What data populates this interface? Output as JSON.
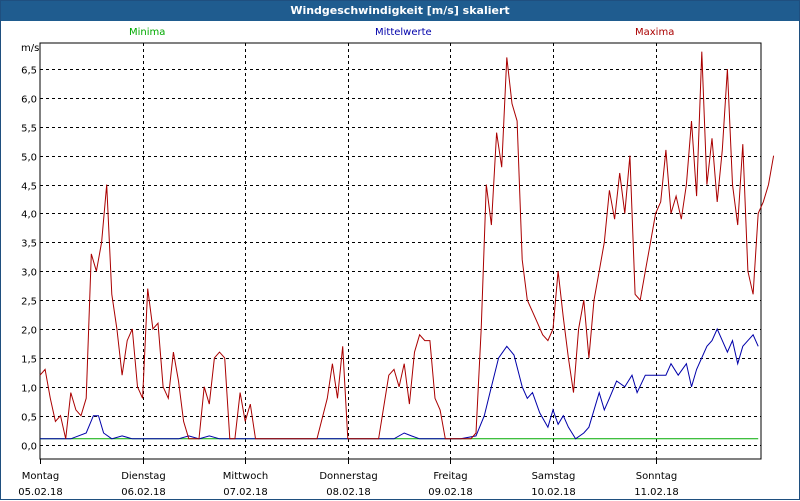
{
  "window": {
    "title": "Windgeschwindigkeit [m/s] skaliert"
  },
  "colors": {
    "min": "#00aa00",
    "mean": "#0000aa",
    "max": "#aa0000",
    "grid": "#000000",
    "titlebar": "#1f5c8f"
  },
  "chart_data": {
    "type": "line",
    "title": "Windgeschwindigkeit [m/s] skaliert",
    "ylabel": "m/s",
    "xlabel": "",
    "ylim": [
      -0.25,
      6.95
    ],
    "xlim": [
      0,
      7
    ],
    "grid": true,
    "legend_placement": "top",
    "y_ticks": [
      "0,0",
      "0,5",
      "1,0",
      "1,5",
      "2,0",
      "2,5",
      "3,0",
      "3,5",
      "4,0",
      "4,5",
      "5,0",
      "5,5",
      "6,0",
      "6,5"
    ],
    "y_tick_values": [
      0,
      0.5,
      1,
      1.5,
      2,
      2.5,
      3,
      3.5,
      4,
      4.5,
      5,
      5.5,
      6,
      6.5
    ],
    "x_ticks": [
      {
        "day": "Montag",
        "date": "05.02.18",
        "x": 0
      },
      {
        "day": "Dienstag",
        "date": "06.02.18",
        "x": 1
      },
      {
        "day": "Mittwoch",
        "date": "07.02.18",
        "x": 2
      },
      {
        "day": "Donnerstag",
        "date": "08.02.18",
        "x": 3
      },
      {
        "day": "Freitag",
        "date": "09.02.18",
        "x": 4
      },
      {
        "day": "Samstag",
        "date": "10.02.18",
        "x": 5
      },
      {
        "day": "Sonntag",
        "date": "11.02.18",
        "x": 6
      }
    ],
    "series": [
      {
        "name": "Minima",
        "color": "#00aa00",
        "points": [
          [
            0,
            0.1
          ],
          [
            7,
            0.1
          ]
        ]
      },
      {
        "name": "Mittelwerte",
        "color": "#0000aa",
        "points": [
          [
            0,
            0.1
          ],
          [
            0.15,
            0.1
          ],
          [
            0.3,
            0.1
          ],
          [
            0.45,
            0.2
          ],
          [
            0.52,
            0.5
          ],
          [
            0.57,
            0.5
          ],
          [
            0.62,
            0.2
          ],
          [
            0.7,
            0.1
          ],
          [
            0.8,
            0.15
          ],
          [
            0.9,
            0.1
          ],
          [
            1.0,
            0.1
          ],
          [
            1.2,
            0.1
          ],
          [
            1.35,
            0.1
          ],
          [
            1.45,
            0.15
          ],
          [
            1.55,
            0.1
          ],
          [
            1.65,
            0.15
          ],
          [
            1.75,
            0.1
          ],
          [
            1.9,
            0.1
          ],
          [
            2.0,
            0.1
          ],
          [
            2.3,
            0.1
          ],
          [
            2.6,
            0.1
          ],
          [
            3.0,
            0.1
          ],
          [
            3.2,
            0.1
          ],
          [
            3.45,
            0.1
          ],
          [
            3.55,
            0.2
          ],
          [
            3.62,
            0.15
          ],
          [
            3.7,
            0.1
          ],
          [
            3.85,
            0.1
          ],
          [
            4.1,
            0.1
          ],
          [
            4.25,
            0.15
          ],
          [
            4.33,
            0.5
          ],
          [
            4.4,
            1.0
          ],
          [
            4.47,
            1.5
          ],
          [
            4.55,
            1.7
          ],
          [
            4.62,
            1.55
          ],
          [
            4.7,
            1.0
          ],
          [
            4.75,
            0.8
          ],
          [
            4.8,
            0.9
          ],
          [
            4.87,
            0.55
          ],
          [
            4.95,
            0.3
          ],
          [
            5.0,
            0.6
          ],
          [
            5.05,
            0.35
          ],
          [
            5.1,
            0.5
          ],
          [
            5.15,
            0.3
          ],
          [
            5.22,
            0.1
          ],
          [
            5.3,
            0.2
          ],
          [
            5.35,
            0.3
          ],
          [
            5.45,
            0.9
          ],
          [
            5.5,
            0.6
          ],
          [
            5.55,
            0.8
          ],
          [
            5.62,
            1.1
          ],
          [
            5.7,
            1.0
          ],
          [
            5.77,
            1.2
          ],
          [
            5.82,
            0.9
          ],
          [
            5.9,
            1.2
          ],
          [
            5.95,
            1.2
          ],
          [
            6.05,
            1.2
          ],
          [
            6.1,
            1.2
          ],
          [
            6.15,
            1.4
          ],
          [
            6.22,
            1.2
          ],
          [
            6.3,
            1.4
          ],
          [
            6.35,
            1.0
          ],
          [
            6.4,
            1.3
          ],
          [
            6.5,
            1.7
          ],
          [
            6.55,
            1.8
          ],
          [
            6.6,
            2.0
          ],
          [
            6.65,
            1.8
          ],
          [
            6.7,
            1.6
          ],
          [
            6.75,
            1.8
          ],
          [
            6.8,
            1.4
          ],
          [
            6.85,
            1.7
          ],
          [
            6.9,
            1.8
          ],
          [
            6.95,
            1.9
          ],
          [
            7.0,
            1.7
          ]
        ]
      },
      {
        "name": "Maxima",
        "color": "#aa0000",
        "points": [
          [
            0,
            1.2
          ],
          [
            0.05,
            1.3
          ],
          [
            0.1,
            0.8
          ],
          [
            0.15,
            0.4
          ],
          [
            0.2,
            0.5
          ],
          [
            0.25,
            0.1
          ],
          [
            0.3,
            0.9
          ],
          [
            0.35,
            0.6
          ],
          [
            0.4,
            0.5
          ],
          [
            0.45,
            0.8
          ],
          [
            0.5,
            3.3
          ],
          [
            0.55,
            3.0
          ],
          [
            0.6,
            3.5
          ],
          [
            0.65,
            4.5
          ],
          [
            0.7,
            2.6
          ],
          [
            0.75,
            2.0
          ],
          [
            0.8,
            1.2
          ],
          [
            0.85,
            1.8
          ],
          [
            0.9,
            2.0
          ],
          [
            0.95,
            1.0
          ],
          [
            1.0,
            0.8
          ],
          [
            1.05,
            2.7
          ],
          [
            1.1,
            2.0
          ],
          [
            1.15,
            2.1
          ],
          [
            1.2,
            1.0
          ],
          [
            1.25,
            0.8
          ],
          [
            1.3,
            1.6
          ],
          [
            1.35,
            1.1
          ],
          [
            1.4,
            0.4
          ],
          [
            1.45,
            0.1
          ],
          [
            1.5,
            0.1
          ],
          [
            1.55,
            0.1
          ],
          [
            1.6,
            1.0
          ],
          [
            1.65,
            0.7
          ],
          [
            1.7,
            1.5
          ],
          [
            1.75,
            1.6
          ],
          [
            1.8,
            1.5
          ],
          [
            1.85,
            0.1
          ],
          [
            1.9,
            0.1
          ],
          [
            1.95,
            0.9
          ],
          [
            2.0,
            0.4
          ],
          [
            2.05,
            0.7
          ],
          [
            2.1,
            0.1
          ],
          [
            2.2,
            0.1
          ],
          [
            2.5,
            0.1
          ],
          [
            2.7,
            0.1
          ],
          [
            2.8,
            0.8
          ],
          [
            2.85,
            1.4
          ],
          [
            2.9,
            0.8
          ],
          [
            2.95,
            1.7
          ],
          [
            3.0,
            0.1
          ],
          [
            3.2,
            0.1
          ],
          [
            3.3,
            0.1
          ],
          [
            3.4,
            1.2
          ],
          [
            3.45,
            1.3
          ],
          [
            3.5,
            1.0
          ],
          [
            3.55,
            1.4
          ],
          [
            3.6,
            0.7
          ],
          [
            3.65,
            1.6
          ],
          [
            3.7,
            1.9
          ],
          [
            3.75,
            1.8
          ],
          [
            3.8,
            1.8
          ],
          [
            3.85,
            0.8
          ],
          [
            3.9,
            0.6
          ],
          [
            3.95,
            0.1
          ],
          [
            4.1,
            0.1
          ],
          [
            4.2,
            0.1
          ],
          [
            4.25,
            0.2
          ],
          [
            4.3,
            2.0
          ],
          [
            4.35,
            4.5
          ],
          [
            4.4,
            3.8
          ],
          [
            4.45,
            5.4
          ],
          [
            4.5,
            4.8
          ],
          [
            4.55,
            6.7
          ],
          [
            4.6,
            5.9
          ],
          [
            4.65,
            5.6
          ],
          [
            4.7,
            3.2
          ],
          [
            4.75,
            2.5
          ],
          [
            4.8,
            2.3
          ],
          [
            4.85,
            2.1
          ],
          [
            4.9,
            1.9
          ],
          [
            4.95,
            1.8
          ],
          [
            5.0,
            2.0
          ],
          [
            5.05,
            3.0
          ],
          [
            5.1,
            2.2
          ],
          [
            5.15,
            1.5
          ],
          [
            5.2,
            0.9
          ],
          [
            5.25,
            2.0
          ],
          [
            5.3,
            2.5
          ],
          [
            5.35,
            1.5
          ],
          [
            5.4,
            2.5
          ],
          [
            5.45,
            3.0
          ],
          [
            5.5,
            3.5
          ],
          [
            5.55,
            4.4
          ],
          [
            5.6,
            3.9
          ],
          [
            5.65,
            4.7
          ],
          [
            5.7,
            4.0
          ],
          [
            5.75,
            5.0
          ],
          [
            5.8,
            2.6
          ],
          [
            5.85,
            2.5
          ],
          [
            5.9,
            3.0
          ],
          [
            5.95,
            3.5
          ],
          [
            6.0,
            4.0
          ],
          [
            6.05,
            4.2
          ],
          [
            6.1,
            5.1
          ],
          [
            6.15,
            4.0
          ],
          [
            6.2,
            4.3
          ],
          [
            6.25,
            3.9
          ],
          [
            6.3,
            4.5
          ],
          [
            6.35,
            5.6
          ],
          [
            6.4,
            4.3
          ],
          [
            6.45,
            6.8
          ],
          [
            6.5,
            4.5
          ],
          [
            6.55,
            5.3
          ],
          [
            6.6,
            4.2
          ],
          [
            6.65,
            5.1
          ],
          [
            6.7,
            6.5
          ],
          [
            6.75,
            4.5
          ],
          [
            6.8,
            3.8
          ],
          [
            6.85,
            5.2
          ],
          [
            6.9,
            3.0
          ],
          [
            6.95,
            2.6
          ],
          [
            7.0,
            4.0
          ],
          [
            7.05,
            4.2
          ],
          [
            7.1,
            4.5
          ],
          [
            7.15,
            5.0
          ]
        ]
      }
    ]
  }
}
